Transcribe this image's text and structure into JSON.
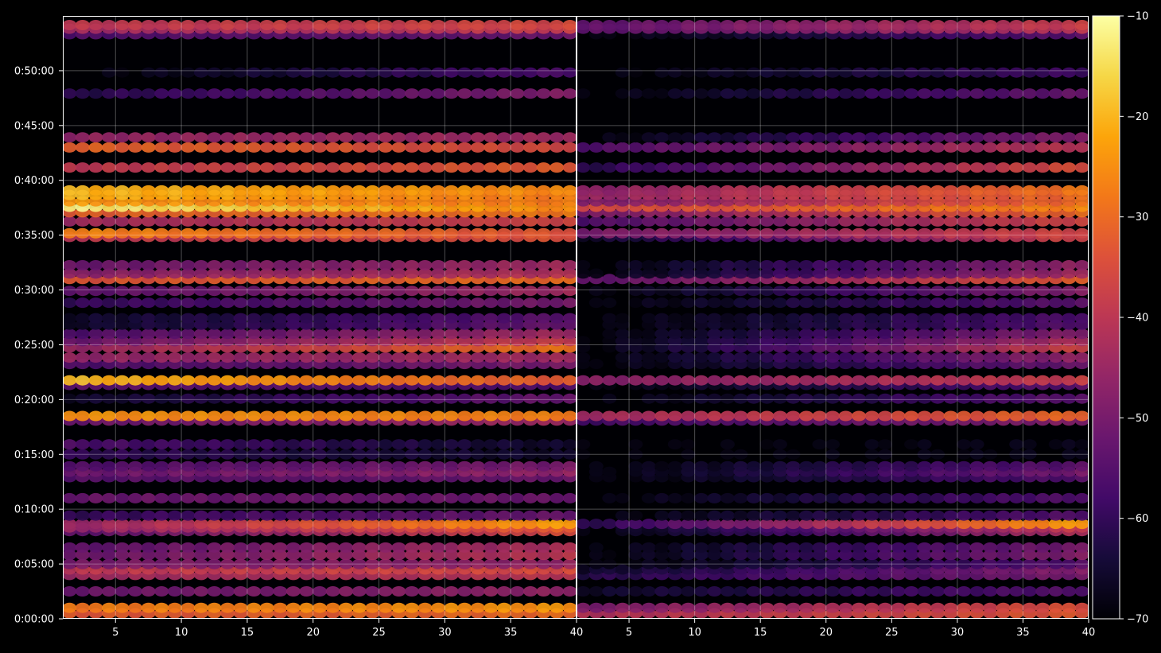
{
  "chart_data": {
    "type": "heatmap",
    "title": "",
    "colormap": "inferno",
    "background": "#000000",
    "grid": true,
    "panels": [
      {
        "name": "",
        "xlim": [
          1,
          40
        ],
        "x_ticks": [
          5,
          10,
          15,
          20,
          25,
          30,
          35,
          40
        ],
        "x_tick_labels": [
          "5",
          "10",
          "15",
          "20",
          "25",
          "30",
          "35",
          "40"
        ]
      },
      {
        "name": "",
        "xlim": [
          1,
          40
        ],
        "x_ticks": [
          5,
          10,
          15,
          20,
          25,
          30,
          35,
          40
        ],
        "x_tick_labels": [
          "5",
          "10",
          "15",
          "20",
          "25",
          "30",
          "35",
          "40"
        ]
      }
    ],
    "y_axis": {
      "unit": "seconds",
      "ylim": [
        0,
        3300
      ],
      "ticks": [
        0,
        300,
        600,
        900,
        1200,
        1500,
        1800,
        2100,
        2400,
        2700,
        3000
      ],
      "tick_labels": [
        "0:00:00",
        "0:05:00",
        "0:10:00",
        "0:15:00",
        "0:20:00",
        "0:25:00",
        "0:30:00",
        "0:35:00",
        "0:40:00",
        "0:45:00",
        "0:50:00"
      ]
    },
    "colorbar": {
      "range": [
        -70,
        -10
      ],
      "ticks": [
        -70,
        -60,
        -50,
        -40,
        -30,
        -20,
        -10
      ],
      "tick_labels": [
        "−70",
        "−60",
        "−50",
        "−40",
        "−30",
        "−20",
        "−10"
      ]
    },
    "bands": [
      {
        "t": 30,
        "left": [
          -33,
          -30
        ],
        "right": [
          -42,
          -33
        ]
      },
      {
        "t": 60,
        "left": [
          -28,
          -24
        ],
        "right": [
          -50,
          -34
        ]
      },
      {
        "t": 150,
        "left": [
          -52,
          -46
        ],
        "right": [
          -66,
          -55
        ]
      },
      {
        "t": 240,
        "left": [
          -44,
          -40
        ],
        "right": [
          -62,
          -50
        ]
      },
      {
        "t": 270,
        "left": [
          -40,
          -35
        ],
        "right": [
          -66,
          -48
        ]
      },
      {
        "t": 300,
        "left": [
          -50,
          -46
        ],
        "right": [
          -70,
          -55
        ]
      },
      {
        "t": 350,
        "left": [
          -52,
          -40
        ],
        "right": [
          -70,
          -48
        ]
      },
      {
        "t": 390,
        "left": [
          -54,
          -42
        ],
        "right": [
          -70,
          -50
        ]
      },
      {
        "t": 480,
        "left": [
          -54,
          -35
        ],
        "right": [
          -70,
          -42
        ]
      },
      {
        "t": 500,
        "left": [
          -46,
          -32
        ],
        "right": [
          -70,
          -38
        ]
      },
      {
        "t": 520,
        "left": [
          -46,
          -22
        ],
        "right": [
          -62,
          -22
        ]
      },
      {
        "t": 565,
        "left": [
          -60,
          -52
        ],
        "right": [
          -70,
          -55
        ]
      },
      {
        "t": 660,
        "left": [
          -52,
          -52
        ],
        "right": [
          -70,
          -55
        ]
      },
      {
        "t": 775,
        "left": [
          -55,
          -52
        ],
        "right": [
          -70,
          -55
        ]
      },
      {
        "t": 805,
        "left": [
          -52,
          -46
        ],
        "right": [
          -70,
          -50
        ]
      },
      {
        "t": 835,
        "left": [
          -56,
          -50
        ],
        "right": [
          -70,
          -54
        ]
      },
      {
        "t": 900,
        "left": [
          -60,
          -66
        ],
        "right": [
          -70,
          -68
        ]
      },
      {
        "t": 955,
        "left": [
          -56,
          -66
        ],
        "right": [
          -70,
          -68
        ]
      },
      {
        "t": 1085,
        "left": [
          -52,
          -44
        ],
        "right": [
          -58,
          -48
        ]
      },
      {
        "t": 1110,
        "left": [
          -24,
          -27
        ],
        "right": [
          -44,
          -30
        ]
      },
      {
        "t": 1205,
        "left": [
          -66,
          -52
        ],
        "right": [
          -70,
          -54
        ]
      },
      {
        "t": 1280,
        "left": [
          -54,
          -56
        ],
        "right": [
          -70,
          -54
        ]
      },
      {
        "t": 1305,
        "left": [
          -19,
          -33
        ],
        "right": [
          -48,
          -38
        ]
      },
      {
        "t": 1395,
        "left": [
          -56,
          -50
        ],
        "right": [
          -70,
          -52
        ]
      },
      {
        "t": 1430,
        "left": [
          -46,
          -44
        ],
        "right": [
          -70,
          -46
        ]
      },
      {
        "t": 1485,
        "left": [
          -46,
          -28
        ],
        "right": [
          -70,
          -36
        ]
      },
      {
        "t": 1520,
        "left": [
          -52,
          -38
        ],
        "right": [
          -70,
          -42
        ]
      },
      {
        "t": 1560,
        "left": [
          -56,
          -44
        ],
        "right": [
          -70,
          -48
        ]
      },
      {
        "t": 1610,
        "left": [
          -66,
          -52
        ],
        "right": [
          -70,
          -55
        ]
      },
      {
        "t": 1645,
        "left": [
          -66,
          -54
        ],
        "right": [
          -70,
          -56
        ]
      },
      {
        "t": 1730,
        "left": [
          -60,
          -50
        ],
        "right": [
          -70,
          -54
        ]
      },
      {
        "t": 1795,
        "left": [
          -54,
          -44
        ],
        "right": [
          -70,
          -48
        ]
      },
      {
        "t": 1860,
        "left": [
          -34,
          -30
        ],
        "right": [
          -54,
          -32
        ]
      },
      {
        "t": 1890,
        "left": [
          -48,
          -42
        ],
        "right": [
          -70,
          -44
        ]
      },
      {
        "t": 1935,
        "left": [
          -52,
          -44
        ],
        "right": [
          -70,
          -46
        ]
      },
      {
        "t": 2090,
        "left": [
          -40,
          -34
        ],
        "right": [
          -66,
          -36
        ]
      },
      {
        "t": 2110,
        "left": [
          -26,
          -34
        ],
        "right": [
          -50,
          -36
        ]
      },
      {
        "t": 2175,
        "left": [
          -44,
          -36
        ],
        "right": [
          -56,
          -36
        ]
      },
      {
        "t": 2225,
        "left": [
          -32,
          -28
        ],
        "right": [
          -50,
          -30
        ]
      },
      {
        "t": 2255,
        "left": [
          -12,
          -26
        ],
        "right": [
          -36,
          -26
        ]
      },
      {
        "t": 2285,
        "left": [
          -24,
          -28
        ],
        "right": [
          -50,
          -30
        ]
      },
      {
        "t": 2320,
        "left": [
          -20,
          -28
        ],
        "right": [
          -46,
          -30
        ]
      },
      {
        "t": 2345,
        "left": [
          -20,
          -26
        ],
        "right": [
          -48,
          -28
        ]
      },
      {
        "t": 2470,
        "left": [
          -40,
          -32
        ],
        "right": [
          -62,
          -34
        ]
      },
      {
        "t": 2580,
        "left": [
          -31,
          -36
        ],
        "right": [
          -56,
          -40
        ]
      },
      {
        "t": 2635,
        "left": [
          -46,
          -44
        ],
        "right": [
          -70,
          -48
        ]
      },
      {
        "t": 2875,
        "left": [
          -62,
          -48
        ],
        "right": [
          -70,
          -52
        ]
      },
      {
        "t": 2990,
        "left": [
          -70,
          -56
        ],
        "right": [
          -70,
          -58
        ]
      },
      {
        "t": 3200,
        "left": [
          -56,
          -52
        ],
        "right": [
          -70,
          -54
        ]
      },
      {
        "t": 3230,
        "left": [
          -44,
          -38
        ],
        "right": [
          -54,
          -40
        ]
      },
      {
        "t": 3250,
        "left": [
          -40,
          -36
        ],
        "right": [
          -54,
          -38
        ]
      }
    ]
  }
}
